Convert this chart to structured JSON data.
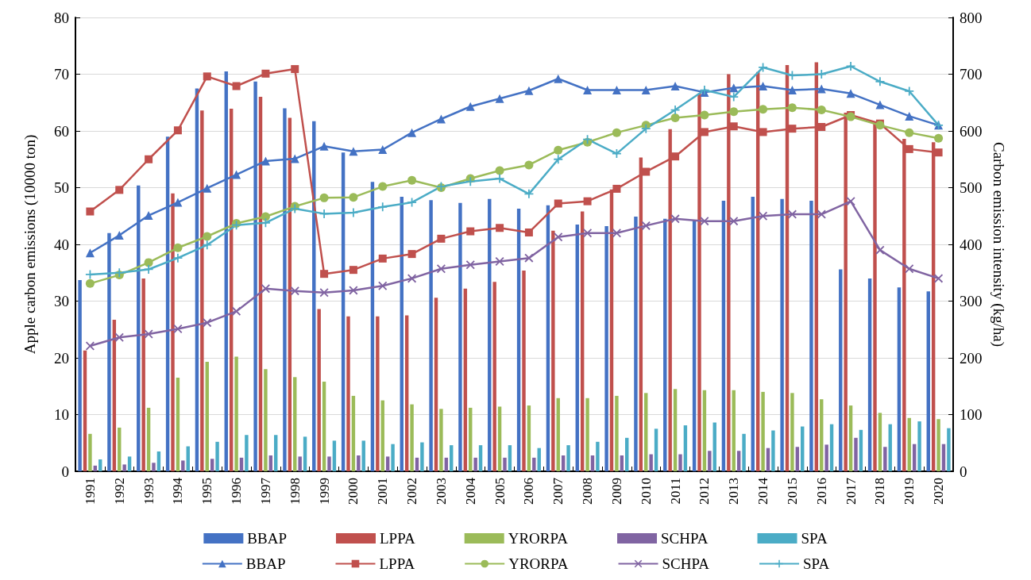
{
  "chart_data": {
    "type": "bar",
    "ylabel": "Apple carbon emissions (10000 ton)",
    "y2label": "Carbon emission intensity (kg/ha)",
    "categories": [
      "1991",
      "1992",
      "1993",
      "1994",
      "1995",
      "1996",
      "1997",
      "1998",
      "1999",
      "2000",
      "2001",
      "2002",
      "2003",
      "2004",
      "2005",
      "2006",
      "2007",
      "2008",
      "2009",
      "2010",
      "2011",
      "2012",
      "2013",
      "2014",
      "2015",
      "2016",
      "2017",
      "2018",
      "2019",
      "2020"
    ],
    "series": [
      {
        "name": "BBAP",
        "color": "#4472c4",
        "values": [
          33.7,
          42,
          50.4,
          59,
          67.5,
          70.5,
          68.7,
          64,
          61.7,
          56.2,
          51,
          48.4,
          47.8,
          47.3,
          48,
          46.3,
          46.9,
          43.5,
          43.2,
          44.9,
          44.5,
          44.2,
          47.7,
          48.4,
          48,
          47.7,
          35.6,
          34,
          32.4,
          31.7
        ]
      },
      {
        "name": "LPPA",
        "color": "#c0504d",
        "values": [
          21.3,
          26.7,
          34,
          49,
          63.6,
          63.9,
          66,
          62.3,
          28.6,
          27.3,
          27.3,
          27.5,
          30.6,
          32.2,
          33.4,
          35.4,
          42.4,
          45.8,
          49.7,
          55.3,
          60.3,
          66.6,
          70,
          70.4,
          71.6,
          72.1,
          63.2,
          61.4,
          58.6,
          58
        ]
      },
      {
        "name": "YRORPA",
        "color": "#9bbb59",
        "values": [
          6.6,
          7.7,
          11.2,
          16.5,
          19.3,
          20.2,
          18,
          16.6,
          15.8,
          13.3,
          12.5,
          11.8,
          11,
          11.2,
          11.4,
          11.6,
          12.9,
          12.9,
          13.3,
          13.8,
          14.5,
          14.3,
          14.3,
          14,
          13.8,
          12.7,
          11.6,
          10.3,
          9.4,
          9.2
        ]
      },
      {
        "name": "SCHPA",
        "color": "#8064a2",
        "values": [
          1,
          1.2,
          1.5,
          1.9,
          2.2,
          2.4,
          2.8,
          2.6,
          2.6,
          2.8,
          2.6,
          2.4,
          2.4,
          2.4,
          2.4,
          2.4,
          2.8,
          2.8,
          2.8,
          3,
          3,
          3.6,
          3.6,
          4.1,
          4.3,
          4.7,
          5.9,
          4.3,
          4.8,
          4.8
        ]
      },
      {
        "name": "SPA",
        "color": "#4bacc6",
        "values": [
          2.1,
          2.6,
          3.5,
          4.4,
          5.2,
          6.4,
          6.4,
          6.1,
          5.4,
          5.4,
          4.8,
          5.1,
          4.6,
          4.6,
          4.6,
          4.1,
          4.6,
          5.2,
          5.9,
          7.5,
          8.1,
          8.6,
          6.6,
          7.2,
          7.9,
          8.3,
          7.3,
          8.3,
          8.8,
          7.6
        ]
      },
      {
        "name": "BBAP",
        "type": "line",
        "axis": "y2",
        "marker": "triangle",
        "color": "#4472c4",
        "values": [
          385,
          416,
          451,
          474,
          499,
          523,
          547,
          551,
          573,
          564,
          567,
          597,
          621,
          643,
          657,
          671,
          692,
          672,
          672,
          672,
          679,
          668,
          676,
          679,
          672,
          674,
          666,
          646,
          626,
          610
        ]
      },
      {
        "name": "LPPA",
        "type": "line",
        "axis": "y2",
        "marker": "square",
        "color": "#c0504d",
        "values": [
          458,
          496,
          550,
          601,
          696,
          679,
          701,
          709,
          348,
          355,
          375,
          383,
          410,
          423,
          429,
          421,
          472,
          476,
          498,
          528,
          555,
          598,
          608,
          598,
          604,
          607,
          628,
          613,
          568,
          562
        ]
      },
      {
        "name": "YRORPA",
        "type": "line",
        "axis": "y2",
        "marker": "circle",
        "color": "#9bbb59",
        "values": [
          331,
          346,
          368,
          394,
          414,
          437,
          449,
          467,
          482,
          483,
          502,
          513,
          500,
          516,
          530,
          540,
          566,
          580,
          597,
          610,
          623,
          628,
          634,
          638,
          641,
          637,
          625,
          610,
          597,
          587
        ]
      },
      {
        "name": "SCHPA",
        "type": "line",
        "axis": "y2",
        "marker": "cross",
        "color": "#8064a2",
        "values": [
          221,
          236,
          242,
          251,
          262,
          282,
          322,
          318,
          315,
          319,
          327,
          340,
          357,
          364,
          370,
          376,
          413,
          420,
          420,
          433,
          445,
          441,
          441,
          450,
          453,
          453,
          476,
          390,
          357,
          340
        ]
      },
      {
        "name": "SPA",
        "type": "line",
        "axis": "y2",
        "marker": "star",
        "color": "#4bacc6",
        "values": [
          347,
          350,
          356,
          376,
          399,
          434,
          438,
          463,
          454,
          456,
          466,
          474,
          502,
          511,
          516,
          489,
          550,
          585,
          560,
          604,
          637,
          672,
          660,
          712,
          698,
          700,
          714,
          687,
          670,
          610
        ]
      }
    ],
    "ylim": [
      0,
      80
    ],
    "yticks": [
      0,
      10,
      20,
      30,
      40,
      50,
      60,
      70,
      80
    ],
    "y2lim": [
      0,
      800
    ],
    "y2ticks": [
      0,
      100,
      200,
      300,
      400,
      500,
      600,
      700,
      800
    ],
    "grid": "y",
    "legend": "bottom"
  }
}
